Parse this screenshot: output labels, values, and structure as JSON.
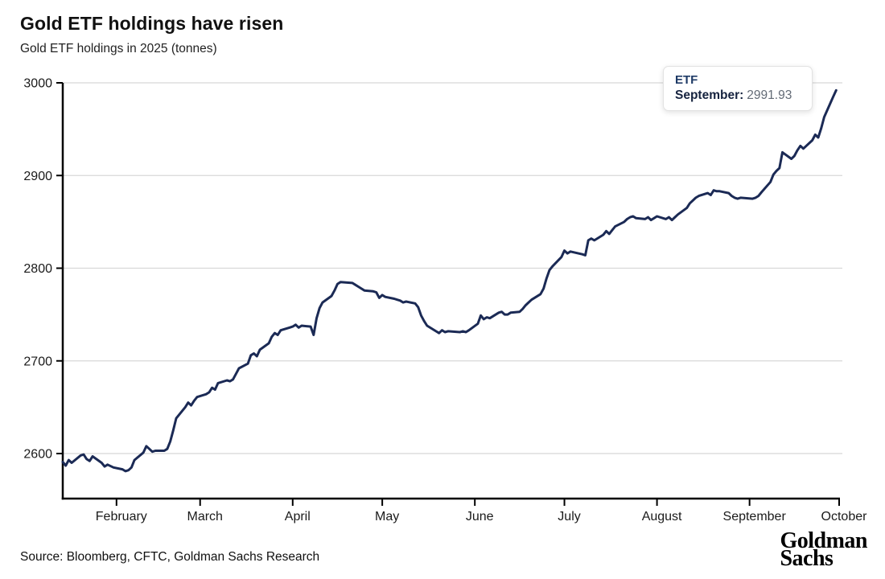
{
  "header": {
    "title": "Gold ETF holdings have risen",
    "subtitle": "Gold ETF holdings in 2025 (tonnes)"
  },
  "tooltip": {
    "series_label": "ETF",
    "point_label": "September:",
    "point_value": "2991.93"
  },
  "footer": {
    "source": "Source: Bloomberg, CFTC, Goldman Sachs Research",
    "logo_line1": "Goldman",
    "logo_line2": "Sachs"
  },
  "chart_data": {
    "type": "line",
    "title": "Gold ETF holdings have risen",
    "subtitle": "Gold ETF holdings in 2025 (tonnes)",
    "ylabel": "tonnes",
    "y_ticks": [
      2600,
      2700,
      2800,
      2900,
      3000
    ],
    "ylim": [
      2551,
      3000
    ],
    "x_range": [
      "2025-01-14",
      "2025-10-01"
    ],
    "x_ticks": [
      {
        "label": "February",
        "date": "2025-02-01"
      },
      {
        "label": "March",
        "date": "2025-03-01"
      },
      {
        "label": "April",
        "date": "2025-04-01"
      },
      {
        "label": "May",
        "date": "2025-05-01"
      },
      {
        "label": "June",
        "date": "2025-06-01"
      },
      {
        "label": "July",
        "date": "2025-07-01"
      },
      {
        "label": "August",
        "date": "2025-08-01"
      },
      {
        "label": "September",
        "date": "2025-09-01"
      },
      {
        "label": "October",
        "date": "2025-10-01"
      }
    ],
    "grid": "horizontal",
    "legend": "none",
    "line_color": "#1b2a55",
    "grid_color": "#d8d8d8",
    "axis_color": "#000000",
    "label_color": "#1a1a1a",
    "highlight": {
      "series": "ETF",
      "month": "September",
      "value": 2991.93
    },
    "series": [
      {
        "name": "ETF",
        "points": [
          [
            "2025-01-14",
            2591
          ],
          [
            "2025-01-15",
            2587
          ],
          [
            "2025-01-16",
            2593
          ],
          [
            "2025-01-17",
            2590
          ],
          [
            "2025-01-20",
            2598
          ],
          [
            "2025-01-21",
            2599
          ],
          [
            "2025-01-22",
            2594
          ],
          [
            "2025-01-23",
            2592
          ],
          [
            "2025-01-24",
            2597
          ],
          [
            "2025-01-27",
            2590
          ],
          [
            "2025-01-28",
            2586
          ],
          [
            "2025-01-29",
            2588
          ],
          [
            "2025-01-31",
            2585
          ],
          [
            "2025-02-03",
            2583
          ],
          [
            "2025-02-04",
            2581
          ],
          [
            "2025-02-05",
            2582
          ],
          [
            "2025-02-06",
            2585
          ],
          [
            "2025-02-07",
            2593
          ],
          [
            "2025-02-10",
            2601
          ],
          [
            "2025-02-11",
            2608
          ],
          [
            "2025-02-12",
            2605
          ],
          [
            "2025-02-13",
            2602
          ],
          [
            "2025-02-14",
            2603
          ],
          [
            "2025-02-17",
            2603
          ],
          [
            "2025-02-18",
            2605
          ],
          [
            "2025-02-19",
            2613
          ],
          [
            "2025-02-20",
            2625
          ],
          [
            "2025-02-21",
            2638
          ],
          [
            "2025-02-24",
            2650
          ],
          [
            "2025-02-25",
            2655
          ],
          [
            "2025-02-26",
            2652
          ],
          [
            "2025-02-27",
            2657
          ],
          [
            "2025-02-28",
            2661
          ],
          [
            "2025-03-03",
            2664
          ],
          [
            "2025-03-04",
            2666
          ],
          [
            "2025-03-05",
            2671
          ],
          [
            "2025-03-06",
            2669
          ],
          [
            "2025-03-07",
            2676
          ],
          [
            "2025-03-10",
            2679
          ],
          [
            "2025-03-11",
            2678
          ],
          [
            "2025-03-12",
            2680
          ],
          [
            "2025-03-13",
            2686
          ],
          [
            "2025-03-14",
            2692
          ],
          [
            "2025-03-17",
            2697
          ],
          [
            "2025-03-18",
            2706
          ],
          [
            "2025-03-19",
            2708
          ],
          [
            "2025-03-20",
            2705
          ],
          [
            "2025-03-21",
            2712
          ],
          [
            "2025-03-24",
            2719
          ],
          [
            "2025-03-25",
            2726
          ],
          [
            "2025-03-26",
            2730
          ],
          [
            "2025-03-27",
            2728
          ],
          [
            "2025-03-28",
            2733
          ],
          [
            "2025-03-31",
            2736
          ],
          [
            "2025-04-01",
            2737
          ],
          [
            "2025-04-02",
            2739
          ],
          [
            "2025-04-03",
            2736
          ],
          [
            "2025-04-04",
            2738
          ],
          [
            "2025-04-07",
            2737
          ],
          [
            "2025-04-08",
            2728
          ],
          [
            "2025-04-09",
            2746
          ],
          [
            "2025-04-10",
            2757
          ],
          [
            "2025-04-11",
            2763
          ],
          [
            "2025-04-14",
            2770
          ],
          [
            "2025-04-15",
            2776
          ],
          [
            "2025-04-16",
            2783
          ],
          [
            "2025-04-17",
            2785
          ],
          [
            "2025-04-21",
            2784
          ],
          [
            "2025-04-22",
            2782
          ],
          [
            "2025-04-23",
            2780
          ],
          [
            "2025-04-24",
            2778
          ],
          [
            "2025-04-25",
            2776
          ],
          [
            "2025-04-28",
            2775
          ],
          [
            "2025-04-29",
            2774
          ],
          [
            "2025-04-30",
            2768
          ],
          [
            "2025-05-01",
            2771
          ],
          [
            "2025-05-02",
            2769
          ],
          [
            "2025-05-05",
            2767
          ],
          [
            "2025-05-06",
            2766
          ],
          [
            "2025-05-07",
            2765
          ],
          [
            "2025-05-08",
            2763
          ],
          [
            "2025-05-09",
            2764
          ],
          [
            "2025-05-12",
            2762
          ],
          [
            "2025-05-13",
            2758
          ],
          [
            "2025-05-14",
            2749
          ],
          [
            "2025-05-15",
            2743
          ],
          [
            "2025-05-16",
            2738
          ],
          [
            "2025-05-19",
            2732
          ],
          [
            "2025-05-20",
            2730
          ],
          [
            "2025-05-21",
            2733
          ],
          [
            "2025-05-22",
            2731
          ],
          [
            "2025-05-23",
            2732
          ],
          [
            "2025-05-27",
            2731
          ],
          [
            "2025-05-28",
            2732
          ],
          [
            "2025-05-29",
            2731
          ],
          [
            "2025-05-30",
            2733
          ],
          [
            "2025-06-02",
            2740
          ],
          [
            "2025-06-03",
            2749
          ],
          [
            "2025-06-04",
            2745
          ],
          [
            "2025-06-05",
            2747
          ],
          [
            "2025-06-06",
            2746
          ],
          [
            "2025-06-09",
            2752
          ],
          [
            "2025-06-10",
            2753
          ],
          [
            "2025-06-11",
            2750
          ],
          [
            "2025-06-12",
            2750
          ],
          [
            "2025-06-13",
            2752
          ],
          [
            "2025-06-16",
            2753
          ],
          [
            "2025-06-17",
            2756
          ],
          [
            "2025-06-18",
            2760
          ],
          [
            "2025-06-19",
            2763
          ],
          [
            "2025-06-20",
            2766
          ],
          [
            "2025-06-23",
            2772
          ],
          [
            "2025-06-24",
            2778
          ],
          [
            "2025-06-25",
            2789
          ],
          [
            "2025-06-26",
            2798
          ],
          [
            "2025-06-27",
            2802
          ],
          [
            "2025-06-30",
            2812
          ],
          [
            "2025-07-01",
            2819
          ],
          [
            "2025-07-02",
            2816
          ],
          [
            "2025-07-03",
            2818
          ],
          [
            "2025-07-07",
            2815
          ],
          [
            "2025-07-08",
            2814
          ],
          [
            "2025-07-09",
            2830
          ],
          [
            "2025-07-10",
            2832
          ],
          [
            "2025-07-11",
            2830
          ],
          [
            "2025-07-14",
            2836
          ],
          [
            "2025-07-15",
            2840
          ],
          [
            "2025-07-16",
            2837
          ],
          [
            "2025-07-17",
            2841
          ],
          [
            "2025-07-18",
            2845
          ],
          [
            "2025-07-21",
            2850
          ],
          [
            "2025-07-22",
            2853
          ],
          [
            "2025-07-23",
            2855
          ],
          [
            "2025-07-24",
            2856
          ],
          [
            "2025-07-25",
            2854
          ],
          [
            "2025-07-28",
            2853
          ],
          [
            "2025-07-29",
            2855
          ],
          [
            "2025-07-30",
            2852
          ],
          [
            "2025-07-31",
            2854
          ],
          [
            "2025-08-01",
            2856
          ],
          [
            "2025-08-04",
            2853
          ],
          [
            "2025-08-05",
            2855
          ],
          [
            "2025-08-06",
            2852
          ],
          [
            "2025-08-07",
            2855
          ],
          [
            "2025-08-08",
            2858
          ],
          [
            "2025-08-11",
            2865
          ],
          [
            "2025-08-12",
            2870
          ],
          [
            "2025-08-13",
            2873
          ],
          [
            "2025-08-14",
            2876
          ],
          [
            "2025-08-15",
            2878
          ],
          [
            "2025-08-18",
            2881
          ],
          [
            "2025-08-19",
            2879
          ],
          [
            "2025-08-20",
            2884
          ],
          [
            "2025-08-21",
            2883
          ],
          [
            "2025-08-22",
            2883
          ],
          [
            "2025-08-25",
            2881
          ],
          [
            "2025-08-26",
            2878
          ],
          [
            "2025-08-27",
            2876
          ],
          [
            "2025-08-28",
            2875
          ],
          [
            "2025-08-29",
            2876
          ],
          [
            "2025-09-02",
            2875
          ],
          [
            "2025-09-03",
            2876
          ],
          [
            "2025-09-04",
            2878
          ],
          [
            "2025-09-05",
            2882
          ],
          [
            "2025-09-08",
            2893
          ],
          [
            "2025-09-09",
            2901
          ],
          [
            "2025-09-10",
            2905
          ],
          [
            "2025-09-11",
            2908
          ],
          [
            "2025-09-12",
            2925
          ],
          [
            "2025-09-15",
            2918
          ],
          [
            "2025-09-16",
            2921
          ],
          [
            "2025-09-17",
            2927
          ],
          [
            "2025-09-18",
            2932
          ],
          [
            "2025-09-19",
            2929
          ],
          [
            "2025-09-22",
            2938
          ],
          [
            "2025-09-23",
            2944
          ],
          [
            "2025-09-24",
            2941
          ],
          [
            "2025-09-25",
            2951
          ],
          [
            "2025-09-26",
            2963
          ],
          [
            "2025-09-29",
            2985
          ],
          [
            "2025-09-30",
            2991.93
          ]
        ]
      }
    ]
  }
}
